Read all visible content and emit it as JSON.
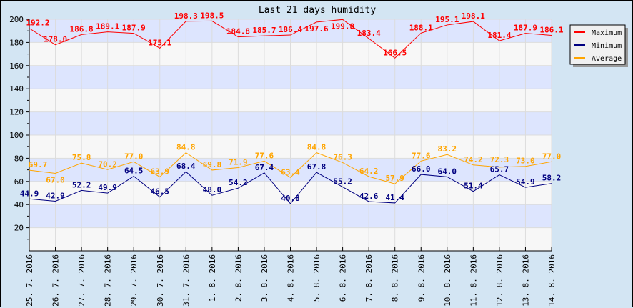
{
  "chart_data": {
    "type": "line",
    "title": "Last 21 days humidity",
    "categories": [
      "25. 7. 2016",
      "26. 7. 2016",
      "27. 7. 2016",
      "28. 7. 2016",
      "29. 7. 2016",
      "30. 7. 2016",
      "31. 7. 2016",
      "1. 8. 2016",
      "2. 8. 2016",
      "3. 8. 2016",
      "4. 8. 2016",
      "5. 8. 2016",
      "6. 8. 2016",
      "7. 8. 2016",
      "8. 8. 2016",
      "9. 8. 2016",
      "10. 8. 2016",
      "11. 8. 2016",
      "12. 8. 2016",
      "13. 8. 2016",
      "14. 8. 2016"
    ],
    "ylim": [
      0,
      200
    ],
    "yticks": [
      20,
      40,
      60,
      80,
      100,
      120,
      140,
      160,
      180,
      200
    ],
    "grid": true,
    "legend_position": "right",
    "series": [
      {
        "name": "Maximum",
        "color": "#ff0000",
        "values": [
          192.2,
          178.0,
          186.8,
          189.1,
          187.9,
          175.1,
          198.3,
          198.5,
          184.8,
          185.7,
          186.4,
          197.6,
          199.8,
          183.4,
          166.5,
          188.1,
          195.1,
          198.1,
          181.4,
          187.9,
          186.1
        ]
      },
      {
        "name": "Minimum",
        "color": "#000080",
        "values": [
          44.9,
          42.9,
          52.2,
          49.9,
          64.5,
          46.5,
          68.4,
          48.0,
          54.2,
          67.4,
          40.8,
          67.8,
          55.2,
          42.6,
          41.4,
          66.0,
          64.0,
          51.4,
          65.7,
          54.9,
          58.2
        ]
      },
      {
        "name": "Average",
        "color": "#ffa500",
        "values": [
          69.7,
          67.0,
          75.8,
          70.2,
          77.0,
          63.9,
          84.8,
          69.8,
          71.9,
          77.6,
          63.4,
          84.8,
          76.3,
          64.2,
          57.9,
          77.6,
          83.2,
          74.2,
          72.3,
          73.0,
          77.0
        ]
      }
    ]
  }
}
